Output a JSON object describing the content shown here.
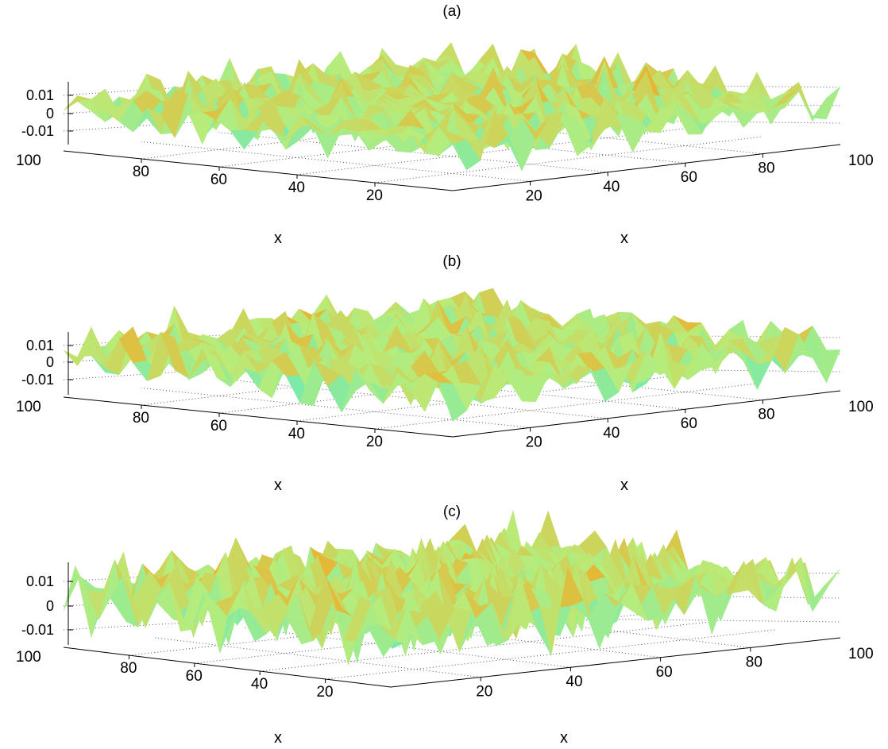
{
  "figure": {
    "colors": {
      "low": "#22e6ee",
      "mid": "#b8ec7a",
      "high": "#ff9a10",
      "peak": "#b0281a",
      "axis": "#000000"
    }
  },
  "chart_data": [
    {
      "type": "surface",
      "title": "(a)",
      "xlabel": "x",
      "ylabel": "x",
      "zlabel": "",
      "x_ticks": [
        "20",
        "40",
        "60",
        "80",
        "100"
      ],
      "y_ticks": [
        "20",
        "40",
        "60",
        "80",
        "100"
      ],
      "z_ticks": [
        "0.01",
        "0",
        "-0.01"
      ],
      "xlim": [
        0,
        100
      ],
      "ylim": [
        0,
        100
      ],
      "zlim": [
        -0.015,
        0.015
      ],
      "grid": true,
      "surface": {
        "amplitude": 0.015,
        "seed": 11,
        "kx": 0.62,
        "ky": 0.5
      }
    },
    {
      "type": "surface",
      "title": "(b)",
      "xlabel": "x",
      "ylabel": "x",
      "zlabel": "",
      "x_ticks": [
        "20",
        "40",
        "60",
        "80",
        "100"
      ],
      "y_ticks": [
        "20",
        "40",
        "60",
        "80",
        "100"
      ],
      "z_ticks": [
        "0.01",
        "0",
        "-0.01"
      ],
      "xlim": [
        0,
        100
      ],
      "ylim": [
        0,
        100
      ],
      "zlim": [
        -0.015,
        0.015
      ],
      "grid": true,
      "surface": {
        "amplitude": 0.015,
        "seed": 23,
        "kx": 0.7,
        "ky": 0.4
      }
    },
    {
      "type": "surface",
      "title": "(c)",
      "xlabel": "x",
      "ylabel": "x",
      "zlabel": "",
      "x_ticks": [
        "20",
        "40",
        "60",
        "80",
        "100"
      ],
      "y_ticks": [
        "20",
        "40",
        "60",
        "80",
        "100"
      ],
      "z_ticks": [
        "0.01",
        "0",
        "-0.01"
      ],
      "xlim": [
        0,
        100
      ],
      "ylim": [
        0,
        100
      ],
      "zlim": [
        -0.015,
        0.015
      ],
      "grid": true,
      "surface": {
        "amplitude": 0.015,
        "seed": 37,
        "kx": 0.55,
        "ky": 0.62
      }
    }
  ]
}
